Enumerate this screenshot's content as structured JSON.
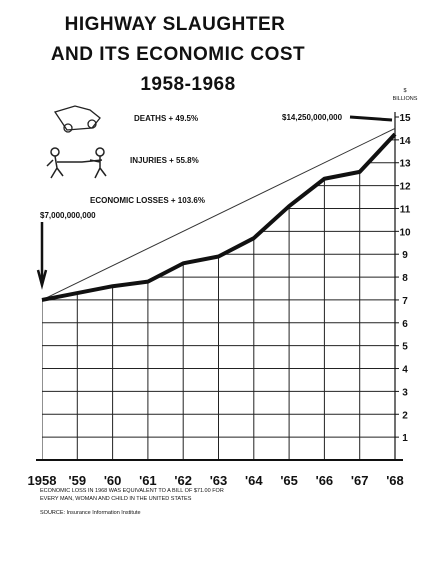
{
  "chart_data": {
    "type": "line",
    "title": [
      "HIGHWAY SLAUGHTER",
      "AND ITS ECONOMIC COST",
      "1958-1968"
    ],
    "y_unit": "$",
    "y_label": "BILLIONS",
    "categories": [
      "1958",
      "'59",
      "'60",
      "'61",
      "'62",
      "'63",
      "'64",
      "'65",
      "'66",
      "'67",
      "'68"
    ],
    "values": [
      7.0,
      7.3,
      7.6,
      7.8,
      8.6,
      8.9,
      9.7,
      11.1,
      12.3,
      12.6,
      14.25
    ],
    "color": "#111111",
    "trend": {
      "from": 7.0,
      "to": 14.5,
      "color": "#333333"
    },
    "ylim": [
      0,
      15
    ],
    "yticks": [
      1,
      2,
      3,
      4,
      5,
      6,
      7,
      8,
      9,
      10,
      11,
      12,
      13,
      14,
      15
    ],
    "grid": true,
    "annotations": {
      "deaths": "DEATHS + 49.5%",
      "injuries": "INJURIES + 55.8%",
      "losses": "ECONOMIC LOSSES + 103.6%",
      "start": "$7,000,000,000",
      "end": "$14,250,000,000"
    },
    "footnote": [
      "ECONOMIC LOSS IN 1968 WAS EQUIVALENT TO A BILL OF $71.00 FOR",
      "EVERY MAN, WOMAN AND CHILD IN THE UNITED STATES"
    ],
    "source": "SOURCE: Insurance Information Institute"
  }
}
